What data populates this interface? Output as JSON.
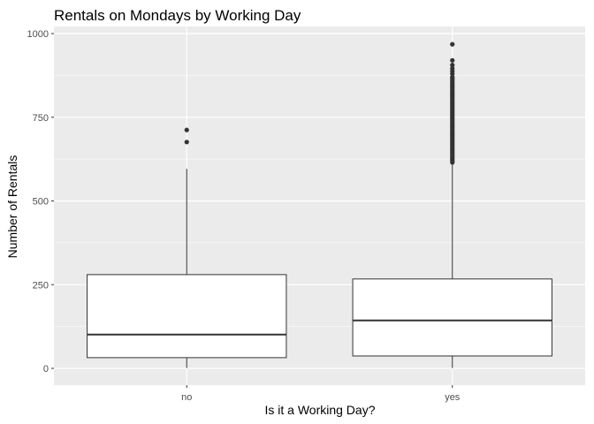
{
  "chart_data": {
    "type": "boxplot",
    "title": "Rentals on Mondays by Working Day",
    "xlabel": "Is it a Working Day?",
    "ylabel": "Number of Rentals",
    "categories": [
      "no",
      "yes"
    ],
    "ylim": [
      -50,
      1030
    ],
    "y_ticks": [
      0,
      250,
      500,
      750,
      1000
    ],
    "y_tick_labels": [
      "0",
      "250",
      "500",
      "750",
      "1000"
    ],
    "grid": true,
    "panel_background": "#ebebeb",
    "grid_color": "#ffffff",
    "box_fill": "#ffffff",
    "box_line": "#333333",
    "outlier_color": "#333333",
    "boxes": [
      {
        "category": "no",
        "whisker_low": 1,
        "q1": 32,
        "median": 101,
        "q3": 280,
        "whisker_high": 596,
        "outliers": [
          676,
          712
        ]
      },
      {
        "category": "yes",
        "whisker_low": 1,
        "q1": 37,
        "median": 143,
        "q3": 267,
        "whisker_high": 610,
        "outliers": [
          615,
          620,
          625,
          630,
          635,
          640,
          645,
          650,
          655,
          660,
          665,
          670,
          675,
          680,
          685,
          690,
          695,
          700,
          705,
          710,
          715,
          720,
          725,
          730,
          735,
          740,
          745,
          750,
          755,
          760,
          765,
          770,
          775,
          780,
          785,
          790,
          795,
          800,
          805,
          810,
          815,
          820,
          825,
          830,
          835,
          840,
          845,
          850,
          855,
          860,
          865,
          870,
          880,
          888,
          896,
          906,
          920,
          968
        ]
      }
    ]
  }
}
